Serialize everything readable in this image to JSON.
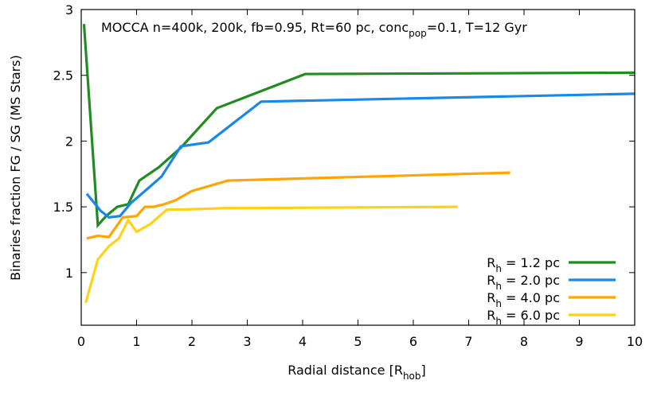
{
  "chart_data": {
    "type": "line",
    "title": {
      "main": "MOCCA n=400k, 200k, fb=0.95, Rt=60 pc, conc",
      "sub": "pop",
      "tail": "=0.1, T=12 Gyr"
    },
    "xlabel": {
      "main": "Radial distance [R",
      "sub": "hob",
      "tail": "]"
    },
    "ylabel": "Binaries fraction FG / SG (MS Stars)",
    "xlim": [
      0,
      10
    ],
    "ylim": [
      0.6,
      3
    ],
    "x_ticks": [
      0,
      1,
      2,
      3,
      4,
      5,
      6,
      7,
      8,
      9,
      10
    ],
    "y_ticks": [
      1,
      1.5,
      2,
      2.5,
      3
    ],
    "y_tick_labels": [
      "1",
      "1.5",
      "2",
      "2.5",
      "3"
    ],
    "grid": false,
    "legend_position": "bottom-right",
    "series": [
      {
        "name": {
          "main": "R",
          "sub": "h",
          "tail": " = 1.2 pc"
        },
        "color": "#228b22",
        "x": [
          0.05,
          0.3,
          0.45,
          0.65,
          0.85,
          1.05,
          1.4,
          1.8,
          2.45,
          4.05,
          10.0
        ],
        "y": [
          2.89,
          1.36,
          1.43,
          1.5,
          1.52,
          1.7,
          1.8,
          1.95,
          2.25,
          2.51,
          2.52
        ]
      },
      {
        "name": {
          "main": "R",
          "sub": "h",
          "tail": " = 2.0 pc"
        },
        "color": "#1a88e8",
        "x": [
          0.1,
          0.35,
          0.5,
          0.7,
          0.9,
          1.15,
          1.45,
          1.8,
          2.3,
          3.25,
          10.0
        ],
        "y": [
          1.6,
          1.47,
          1.42,
          1.43,
          1.53,
          1.62,
          1.73,
          1.96,
          1.99,
          2.3,
          2.36
        ]
      },
      {
        "name": {
          "main": "R",
          "sub": "h",
          "tail": " = 4.0 pc"
        },
        "color": "#ffa500",
        "x": [
          0.1,
          0.3,
          0.5,
          0.75,
          1.0,
          1.15,
          1.3,
          1.5,
          1.7,
          2.0,
          2.65,
          7.75
        ],
        "y": [
          1.26,
          1.28,
          1.27,
          1.42,
          1.43,
          1.5,
          1.5,
          1.52,
          1.55,
          1.62,
          1.7,
          1.76
        ]
      },
      {
        "name": {
          "main": "R",
          "sub": "h",
          "tail": " = 6.0 pc"
        },
        "color": "#ffd21a",
        "x": [
          0.08,
          0.3,
          0.5,
          0.68,
          0.85,
          1.0,
          1.25,
          1.55,
          1.85,
          2.6,
          6.8
        ],
        "y": [
          0.77,
          1.1,
          1.2,
          1.26,
          1.4,
          1.31,
          1.37,
          1.48,
          1.48,
          1.49,
          1.5
        ]
      }
    ]
  }
}
